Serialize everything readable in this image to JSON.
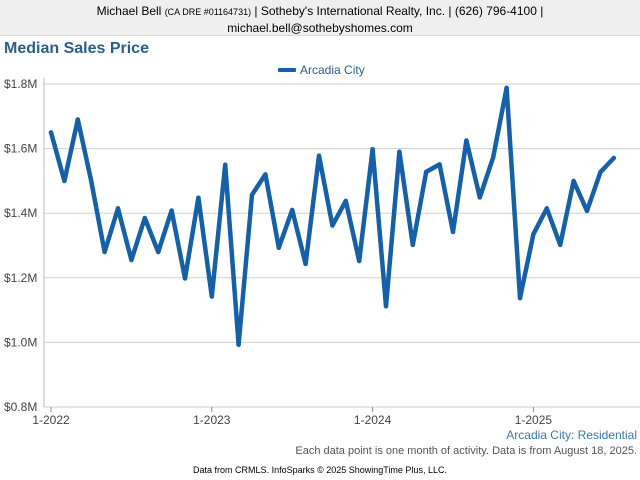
{
  "header": {
    "name": "Michael Bell",
    "license": "(CA DRE #01164731)",
    "rest_line1": " | Sotheby's International Realty, Inc. | (626) 796-4100 |",
    "line2": "michael.bell@sothebyshomes.com"
  },
  "title": "Median Sales Price",
  "legend": {
    "label": "Arcadia City",
    "color": "#1560a6"
  },
  "subtitle": "Arcadia City: Residential",
  "footnote": "Each data point is one month of activity. Data is from August 18, 2025.",
  "credit": "Data from CRMLS. InfoSparks © 2025 ShowingTime Plus, LLC.",
  "chart_data": {
    "type": "line",
    "title": "Median Sales Price",
    "xlabel": "",
    "ylabel": "",
    "ylim": [
      800000,
      1800000
    ],
    "y_ticks": [
      800000,
      1000000,
      1200000,
      1400000,
      1600000,
      1800000
    ],
    "y_tick_labels": [
      "$0.8M",
      "$1.0M",
      "$1.2M",
      "$1.4M",
      "$1.6M",
      "$1.8M"
    ],
    "x_tick_labels": [
      "1-2022",
      "1-2023",
      "1-2024",
      "1-2025"
    ],
    "x_tick_months": [
      "2022-01",
      "2023-01",
      "2024-01",
      "2025-01"
    ],
    "grid": true,
    "legend_position": "top-center",
    "x": [
      "2022-01",
      "2022-02",
      "2022-03",
      "2022-04",
      "2022-05",
      "2022-06",
      "2022-07",
      "2022-08",
      "2022-09",
      "2022-10",
      "2022-11",
      "2022-12",
      "2023-01",
      "2023-02",
      "2023-03",
      "2023-04",
      "2023-05",
      "2023-06",
      "2023-07",
      "2023-08",
      "2023-09",
      "2023-10",
      "2023-11",
      "2023-12",
      "2024-01",
      "2024-02",
      "2024-03",
      "2024-04",
      "2024-05",
      "2024-06",
      "2024-07",
      "2024-08",
      "2024-09",
      "2024-10",
      "2024-11",
      "2024-12",
      "2025-01",
      "2025-02",
      "2025-03",
      "2025-04",
      "2025-05",
      "2025-06",
      "2025-07"
    ],
    "series": [
      {
        "name": "Arcadia City",
        "color": "#1560a6",
        "values": [
          1650000,
          1500000,
          1690000,
          1500000,
          1280000,
          1415000,
          1255000,
          1385000,
          1280000,
          1408000,
          1198000,
          1448000,
          1142000,
          1550000,
          993000,
          1457000,
          1520000,
          1293000,
          1410000,
          1243000,
          1578000,
          1362000,
          1438000,
          1252000,
          1598000,
          1112000,
          1590000,
          1302000,
          1528000,
          1551000,
          1342000,
          1625000,
          1449000,
          1573000,
          1788000,
          1137000,
          1335000,
          1415000,
          1302000,
          1500000,
          1407000,
          1527000,
          1571000
        ]
      }
    ]
  }
}
